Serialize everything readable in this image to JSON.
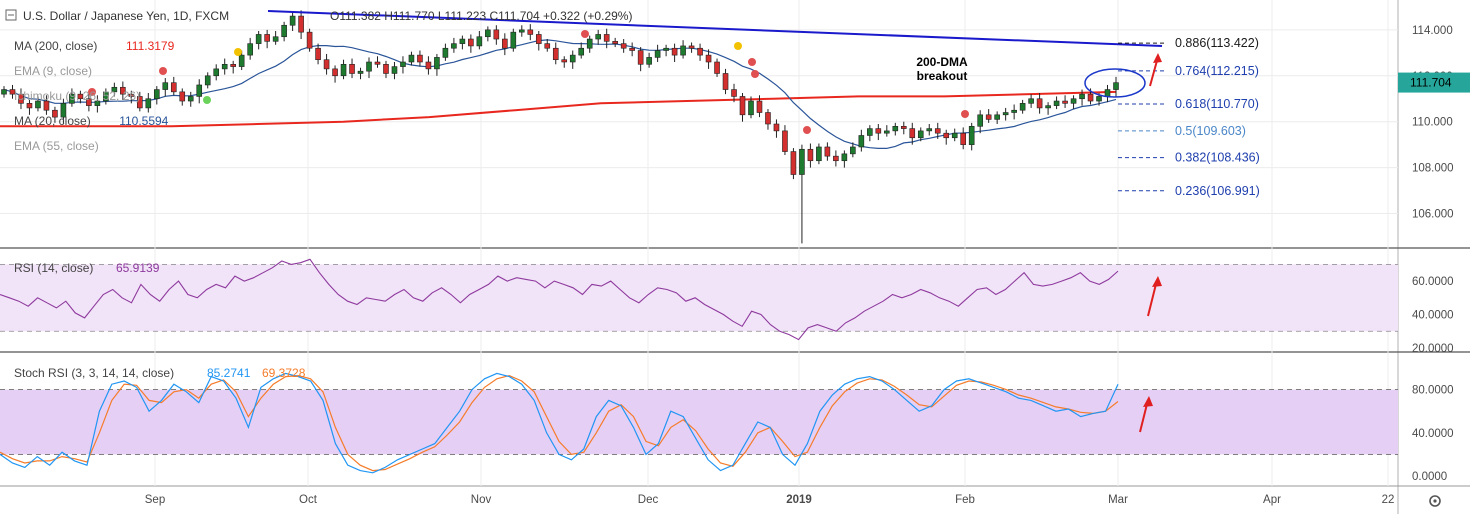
{
  "header": {
    "title": "U.S. Dollar / Japanese Yen, 1D, FXCM",
    "ohlc": "O111.382  H111.770  L111.223  C111.704  +0.322 (+0.29%)"
  },
  "indicators": [
    {
      "name": "MA (200, close)",
      "value": "111.3179",
      "color": "#e8281f"
    },
    {
      "name": "EMA (9, close)",
      "value": "",
      "color": "#a0a0a0"
    },
    {
      "name": "Ichimoku (9, 26, 52, 26)",
      "value": "",
      "color": "#a0a0a0"
    },
    {
      "name": "MA (20, close)",
      "value": "110.5594",
      "color": "#2a5599"
    },
    {
      "name": "EMA (55, close)",
      "value": "",
      "color": "#a0a0a0"
    }
  ],
  "annotation": {
    "line1": "200-DMA",
    "line2": "breakout"
  },
  "fib_levels": [
    {
      "label": "0.886(113.422)",
      "value": 113.422,
      "color": "#1a1a1a"
    },
    {
      "label": "0.764(112.215)",
      "value": 112.215,
      "color": "#1f3fae"
    },
    {
      "label": "0.618(110.770)",
      "value": 110.77,
      "color": "#1f3fae"
    },
    {
      "label": "0.5(109.603)",
      "value": 109.603,
      "color": "#4a86c8"
    },
    {
      "label": "0.382(108.436)",
      "value": 108.436,
      "color": "#1f3fae"
    },
    {
      "label": "0.236(106.991)",
      "value": 106.991,
      "color": "#1f3fae"
    }
  ],
  "price_axis": {
    "ticks": [
      "114.000",
      "112.000",
      "110.000",
      "108.000",
      "106.000"
    ],
    "last_price": "111.704",
    "last_color": "#26a69a"
  },
  "rsi_panel": {
    "label": "RSI (14, close)",
    "value": "65.9139",
    "color": "#8e3a9e",
    "ticks": [
      "60.0000",
      "40.0000",
      "20.0000"
    ]
  },
  "stoch_panel": {
    "label": "Stoch RSI (3, 3, 14, 14, close)",
    "k_value": "85.2741",
    "d_value": "69.3728",
    "k_color": "#2196f3",
    "d_color": "#f57c2a",
    "ticks": [
      "80.0000",
      "40.0000",
      "0.0000"
    ]
  },
  "x_axis": [
    "Sep",
    "Oct",
    "Nov",
    "Dec",
    "2019",
    "Feb",
    "Mar",
    "Apr",
    "22"
  ],
  "chart_data": {
    "type": "candlestick",
    "title": "U.S. Dollar / Japanese Yen, 1D, FXCM",
    "ylim": [
      104.5,
      115.3
    ],
    "series": [
      {
        "name": "USDJPY daily close",
        "values": [
          111.4,
          111.2,
          110.8,
          110.6,
          110.9,
          110.5,
          110.2,
          110.8,
          111.2,
          111.0,
          110.7,
          110.9,
          111.3,
          111.5,
          111.2,
          111.1,
          110.6,
          111.0,
          111.4,
          111.7,
          111.3,
          110.9,
          111.1,
          111.6,
          112.0,
          112.3,
          112.5,
          112.4,
          112.9,
          113.4,
          113.8,
          113.5,
          113.7,
          114.2,
          114.6,
          113.9,
          113.2,
          112.7,
          112.3,
          112.0,
          112.5,
          112.1,
          112.2,
          112.6,
          112.5,
          112.1,
          112.4,
          112.6,
          112.9,
          112.6,
          112.3,
          112.8,
          113.2,
          113.4,
          113.6,
          113.3,
          113.7,
          114.0,
          113.6,
          113.2,
          113.9,
          114.0,
          113.8,
          113.4,
          113.2,
          112.7,
          112.6,
          112.9,
          113.2,
          113.6,
          113.8,
          113.5,
          113.4,
          113.2,
          113.1,
          112.5,
          112.8,
          113.1,
          113.2,
          112.9,
          113.3,
          113.2,
          112.9,
          112.6,
          112.1,
          111.4,
          111.1,
          110.3,
          110.9,
          110.4,
          109.9,
          109.6,
          108.7,
          107.7,
          108.8,
          108.3,
          108.9,
          108.5,
          108.3,
          108.6,
          108.9,
          109.4,
          109.7,
          109.5,
          109.6,
          109.8,
          109.7,
          109.3,
          109.6,
          109.7,
          109.5,
          109.3,
          109.5,
          109.0,
          109.8,
          110.3,
          110.1,
          110.3,
          110.4,
          110.5,
          110.8,
          111.0,
          110.6,
          110.7,
          110.9,
          110.8,
          111.0,
          111.2,
          110.9,
          111.1,
          111.4,
          111.7
        ]
      },
      {
        "name": "MA (200, close)",
        "values": [
          109.8,
          109.8,
          109.8,
          109.9,
          110.0,
          110.2,
          110.5,
          110.8,
          110.9,
          111.0,
          111.1,
          111.1,
          111.2,
          111.3
        ]
      },
      {
        "name": "Fibonacci levels",
        "values": [
          113.422,
          112.215,
          110.77,
          109.603,
          108.436,
          106.991
        ]
      }
    ],
    "rsi_values": [
      52,
      50,
      48,
      45,
      50,
      47,
      44,
      48,
      41,
      38,
      45,
      52,
      55,
      50,
      47,
      58,
      52,
      48,
      55,
      60,
      52,
      50,
      55,
      58,
      56,
      63,
      60,
      62,
      65,
      68,
      72,
      70,
      71,
      73,
      65,
      58,
      52,
      48,
      46,
      50,
      49,
      48,
      52,
      55,
      50,
      48,
      53,
      56,
      52,
      47,
      52,
      55,
      58,
      63,
      60,
      62,
      61,
      60,
      56,
      60,
      58,
      56,
      52,
      58,
      57,
      60,
      55,
      50,
      47,
      52,
      56,
      55,
      53,
      48,
      50,
      46,
      43,
      40,
      36,
      33,
      42,
      40,
      34,
      30,
      28,
      25,
      32,
      34,
      32,
      30,
      35,
      38,
      42,
      45,
      48,
      52,
      50,
      52,
      55,
      53,
      50,
      48,
      45,
      50,
      55,
      56,
      52,
      55,
      60,
      65,
      58,
      57,
      58,
      60,
      62,
      65,
      60,
      58,
      61,
      66
    ],
    "stoch_k": [
      20,
      12,
      8,
      18,
      10,
      22,
      14,
      10,
      60,
      85,
      88,
      82,
      60,
      70,
      85,
      78,
      68,
      92,
      88,
      72,
      45,
      82,
      90,
      95,
      92,
      88,
      70,
      30,
      10,
      5,
      3,
      8,
      15,
      20,
      25,
      30,
      45,
      60,
      80,
      90,
      95,
      92,
      85,
      70,
      40,
      20,
      15,
      25,
      55,
      70,
      65,
      45,
      20,
      30,
      60,
      55,
      35,
      15,
      5,
      10,
      30,
      50,
      45,
      20,
      10,
      30,
      60,
      75,
      85,
      90,
      92,
      88,
      80,
      70,
      60,
      65,
      80,
      88,
      90,
      86,
      82,
      78,
      72,
      70,
      65,
      60,
      62,
      55,
      58,
      60,
      85
    ],
    "stoch_d": [
      22,
      16,
      12,
      14,
      14,
      18,
      16,
      13,
      40,
      70,
      85,
      84,
      70,
      68,
      78,
      80,
      72,
      85,
      89,
      78,
      55,
      72,
      85,
      92,
      93,
      90,
      78,
      45,
      20,
      10,
      5,
      6,
      11,
      16,
      22,
      27,
      38,
      50,
      68,
      82,
      90,
      93,
      88,
      78,
      55,
      32,
      20,
      22,
      40,
      60,
      66,
      55,
      32,
      28,
      45,
      52,
      42,
      25,
      12,
      9,
      22,
      40,
      45,
      32,
      18,
      22,
      45,
      65,
      78,
      86,
      90,
      89,
      83,
      75,
      66,
      64,
      74,
      84,
      88,
      87,
      84,
      80,
      75,
      72,
      68,
      64,
      62,
      59,
      58,
      60,
      69
    ]
  }
}
